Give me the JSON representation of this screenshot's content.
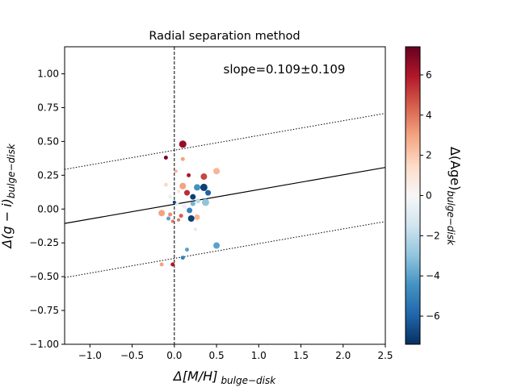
{
  "chart_data": {
    "type": "scatter",
    "title": "Radial separation method",
    "xlabel_main": "Δ[M/H]",
    "xlabel_sub": "bulge−disk",
    "ylabel_main": "Δ(g − i)",
    "ylabel_sub": "bulge−disk",
    "annotation": "slope=0.109±0.109",
    "xlim": [
      -1.3,
      2.5
    ],
    "ylim": [
      -1.0,
      1.2
    ],
    "xticks": [
      -1.0,
      -0.5,
      0.0,
      0.5,
      1.0,
      1.5,
      2.0,
      2.5
    ],
    "xtick_labels": [
      "−1.0",
      "−0.5",
      "0.0",
      "0.5",
      "1.0",
      "1.5",
      "2.0",
      "2.5"
    ],
    "yticks": [
      1.0,
      0.75,
      0.5,
      0.25,
      0.0,
      -0.25,
      -0.5,
      -0.75,
      -1.0
    ],
    "ytick_labels": [
      "1.00",
      "0.75",
      "0.50",
      "0.25",
      "0.00",
      "−0.25",
      "−0.50",
      "−0.75",
      "−1.00"
    ],
    "fit": {
      "slope": 0.109,
      "intercept": 0.035,
      "band_offset": 0.4
    },
    "vline_x": 0.0,
    "colorbar": {
      "label_main": "Δ(Age)",
      "label_sub": "bulge−disk",
      "range": [
        -7.4,
        7.4
      ],
      "ticks": [
        6,
        4,
        2,
        0,
        -2,
        -4,
        -6
      ],
      "tick_labels": [
        "6",
        "4",
        "2",
        "0",
        "−2",
        "−4",
        "−6"
      ]
    },
    "points": [
      {
        "x": 0.1,
        "y": 0.48,
        "age": 6.5,
        "size": 4.5
      },
      {
        "x": -0.1,
        "y": 0.38,
        "age": 7.0,
        "size": 2.5
      },
      {
        "x": 0.1,
        "y": 0.37,
        "age": 3.0,
        "size": 2.5
      },
      {
        "x": 0.5,
        "y": 0.28,
        "age": 2.5,
        "size": 4.0
      },
      {
        "x": 0.02,
        "y": 0.28,
        "age": 2.5,
        "size": 2.0
      },
      {
        "x": 0.17,
        "y": 0.25,
        "age": 6.0,
        "size": 2.5
      },
      {
        "x": 0.35,
        "y": 0.24,
        "age": 5.0,
        "size": 4.0
      },
      {
        "x": 0.35,
        "y": 0.16,
        "age": -7.0,
        "size": 4.5
      },
      {
        "x": 0.1,
        "y": 0.17,
        "age": 3.0,
        "size": 4.0
      },
      {
        "x": 0.27,
        "y": 0.16,
        "age": -4.5,
        "size": 4.0
      },
      {
        "x": -0.1,
        "y": 0.18,
        "age": 1.5,
        "size": 2.5
      },
      {
        "x": 0.4,
        "y": 0.12,
        "age": -6.0,
        "size": 3.5
      },
      {
        "x": 0.15,
        "y": 0.12,
        "age": 5.5,
        "size": 3.5
      },
      {
        "x": 0.22,
        "y": 0.09,
        "age": -7.0,
        "size": 3.5
      },
      {
        "x": 0.05,
        "y": 0.13,
        "age": 1.0,
        "size": 2.0
      },
      {
        "x": -0.05,
        "y": 0.09,
        "age": -0.5,
        "size": 2.5
      },
      {
        "x": 0.28,
        "y": 0.06,
        "age": -2.0,
        "size": 3.0
      },
      {
        "x": 0.37,
        "y": 0.05,
        "age": -3.0,
        "size": 4.5
      },
      {
        "x": 0.22,
        "y": 0.04,
        "age": -3.5,
        "size": 3.0
      },
      {
        "x": 0.03,
        "y": 0.04,
        "age": -1.0,
        "size": 2.5
      },
      {
        "x": 0.0,
        "y": 0.05,
        "age": -7.0,
        "size": 2.0
      },
      {
        "x": 0.12,
        "y": 0.02,
        "age": -0.5,
        "size": 3.0
      },
      {
        "x": 0.18,
        "y": -0.01,
        "age": -5.0,
        "size": 3.5
      },
      {
        "x": -0.15,
        "y": -0.03,
        "age": 3.0,
        "size": 4.0
      },
      {
        "x": -0.05,
        "y": -0.04,
        "age": 3.5,
        "size": 2.5
      },
      {
        "x": 0.08,
        "y": -0.05,
        "age": 4.5,
        "size": 2.5
      },
      {
        "x": 0.27,
        "y": -0.06,
        "age": 2.5,
        "size": 3.5
      },
      {
        "x": 0.2,
        "y": -0.07,
        "age": -7.0,
        "size": 4.0
      },
      {
        "x": -0.07,
        "y": -0.07,
        "age": -4.0,
        "size": 2.5
      },
      {
        "x": 0.05,
        "y": -0.08,
        "age": 4.0,
        "size": 2.0
      },
      {
        "x": -0.02,
        "y": -0.09,
        "age": 4.0,
        "size": 2.0
      },
      {
        "x": 0.25,
        "y": -0.15,
        "age": -1.0,
        "size": 2.0
      },
      {
        "x": 0.5,
        "y": -0.27,
        "age": -4.0,
        "size": 4.0
      },
      {
        "x": 0.15,
        "y": -0.3,
        "age": -4.0,
        "size": 2.5
      },
      {
        "x": 0.1,
        "y": -0.36,
        "age": -5.0,
        "size": 2.5
      },
      {
        "x": -0.15,
        "y": -0.41,
        "age": 3.0,
        "size": 2.5
      },
      {
        "x": -0.02,
        "y": -0.41,
        "age": 6.0,
        "size": 2.5
      }
    ]
  }
}
